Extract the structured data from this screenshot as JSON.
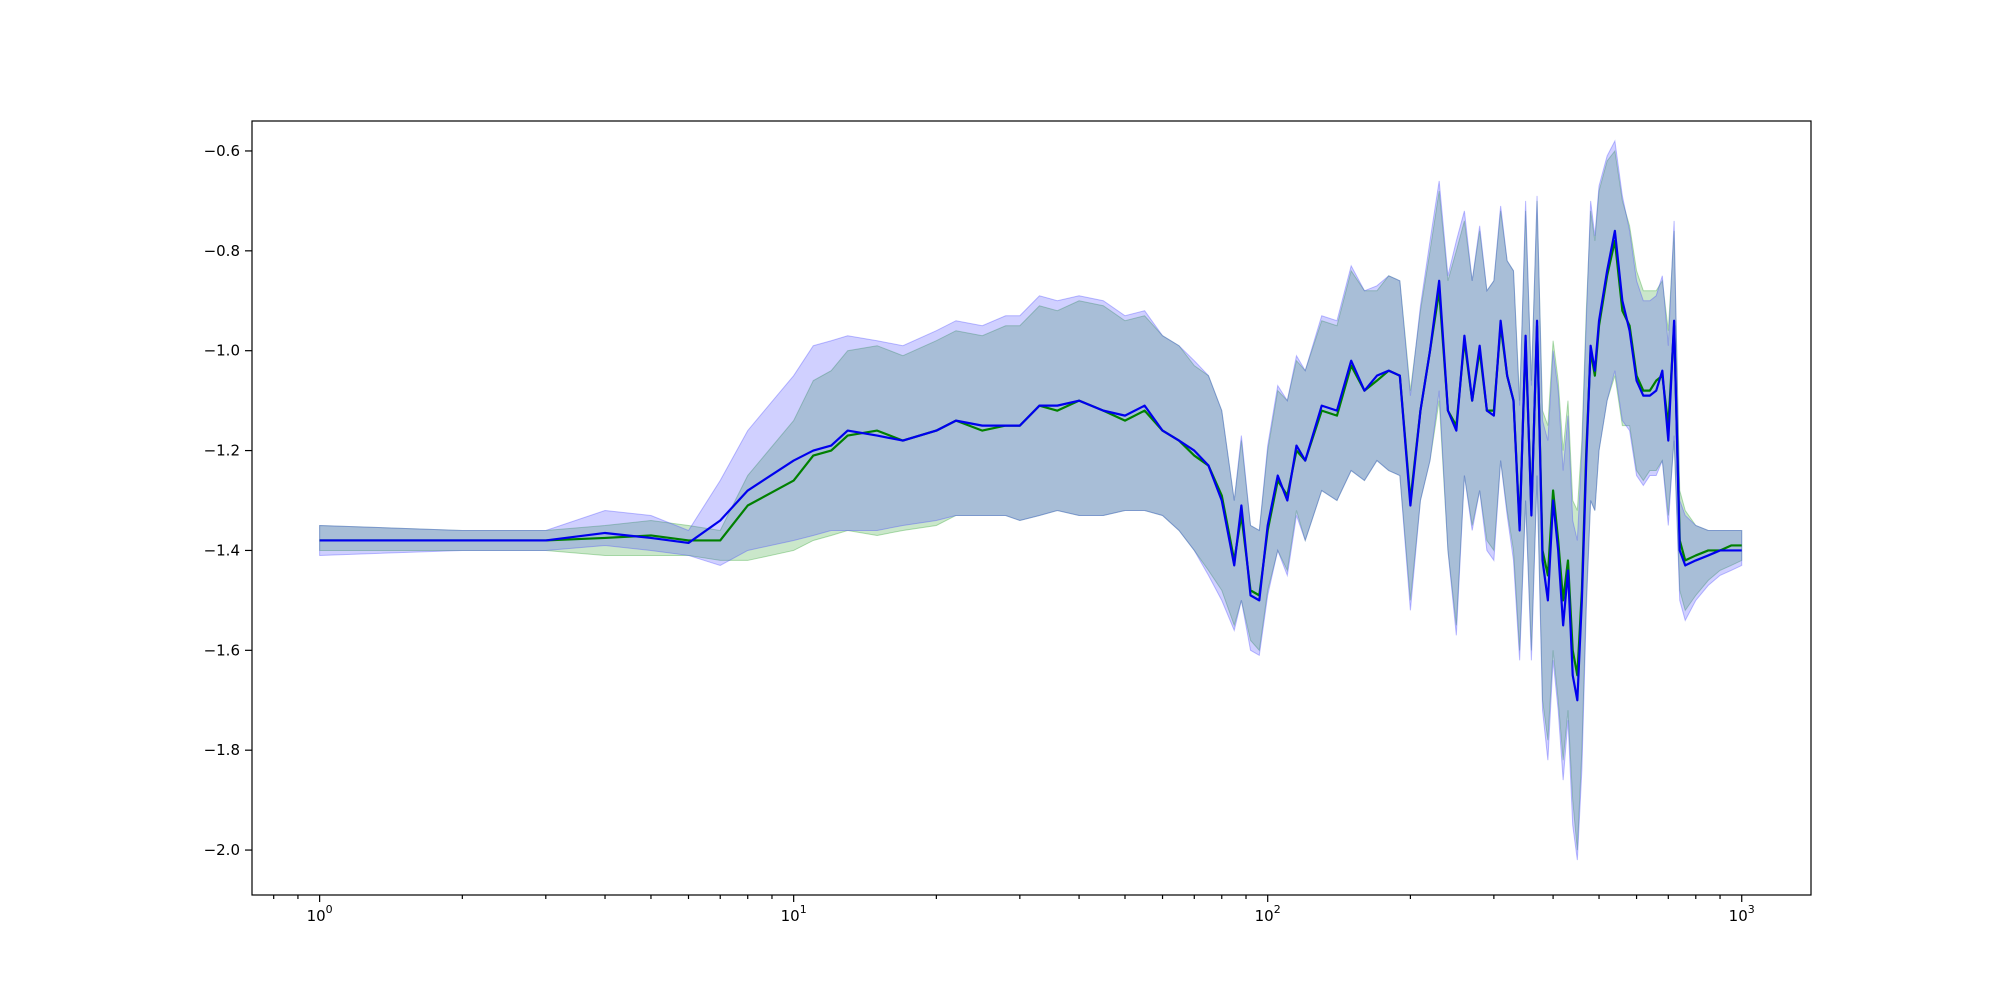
{
  "chart_data": {
    "type": "line",
    "title": "",
    "xlabel": "",
    "ylabel": "",
    "xscale": "log",
    "xlim": [
      0.72,
      1400
    ],
    "ylim": [
      -2.09,
      -0.54
    ],
    "grid": false,
    "legend": "none",
    "x_ticks": [
      {
        "value": 1,
        "base": "10",
        "exp": "0"
      },
      {
        "value": 10,
        "base": "10",
        "exp": "1"
      },
      {
        "value": 100,
        "base": "10",
        "exp": "2"
      },
      {
        "value": 1000,
        "base": "10",
        "exp": "3"
      }
    ],
    "y_ticks": [
      {
        "value": -0.6,
        "label": "−0.6"
      },
      {
        "value": -0.8,
        "label": "−0.8"
      },
      {
        "value": -1.0,
        "label": "−1.0"
      },
      {
        "value": -1.2,
        "label": "−1.2"
      },
      {
        "value": -1.4,
        "label": "−1.4"
      },
      {
        "value": -1.6,
        "label": "−1.6"
      },
      {
        "value": -1.8,
        "label": "−1.8"
      },
      {
        "value": -2.0,
        "label": "−2.0"
      }
    ],
    "series": [
      {
        "color": "#008000",
        "band_color": "#2ca02c",
        "band_opacity": 0.25,
        "x": [
          1,
          2,
          3,
          4,
          5,
          6,
          7,
          8,
          10,
          11,
          12,
          13,
          15,
          17,
          20,
          22,
          25,
          28,
          30,
          33,
          36,
          40,
          45,
          50,
          55,
          60,
          65,
          70,
          75,
          80,
          85,
          88,
          92,
          96,
          100,
          105,
          110,
          115,
          120,
          130,
          140,
          150,
          160,
          170,
          180,
          190,
          200,
          210,
          220,
          230,
          240,
          250,
          260,
          270,
          280,
          290,
          300,
          310,
          320,
          330,
          340,
          350,
          360,
          370,
          380,
          390,
          400,
          410,
          420,
          430,
          440,
          450,
          460,
          470,
          480,
          490,
          500,
          520,
          540,
          560,
          580,
          600,
          620,
          640,
          660,
          680,
          700,
          720,
          740,
          760,
          800,
          850,
          900,
          950,
          1000
        ],
        "y": [
          -1.38,
          -1.38,
          -1.38,
          -1.375,
          -1.37,
          -1.38,
          -1.38,
          -1.31,
          -1.26,
          -1.21,
          -1.2,
          -1.17,
          -1.16,
          -1.18,
          -1.16,
          -1.14,
          -1.16,
          -1.15,
          -1.15,
          -1.11,
          -1.12,
          -1.1,
          -1.12,
          -1.14,
          -1.12,
          -1.16,
          -1.18,
          -1.21,
          -1.23,
          -1.29,
          -1.42,
          -1.33,
          -1.48,
          -1.49,
          -1.36,
          -1.26,
          -1.29,
          -1.2,
          -1.22,
          -1.12,
          -1.13,
          -1.03,
          -1.08,
          -1.06,
          -1.04,
          -1.05,
          -1.3,
          -1.12,
          -1.0,
          -0.88,
          -1.12,
          -1.15,
          -0.98,
          -1.1,
          -1.0,
          -1.12,
          -1.12,
          -0.95,
          -1.05,
          -1.1,
          -1.35,
          -0.98,
          -1.32,
          -0.95,
          -1.4,
          -1.45,
          -1.28,
          -1.38,
          -1.5,
          -1.42,
          -1.6,
          -1.65,
          -1.48,
          -1.2,
          -1.0,
          -1.05,
          -0.95,
          -0.85,
          -0.78,
          -0.92,
          -0.95,
          -1.05,
          -1.08,
          -1.08,
          -1.06,
          -1.05,
          -1.15,
          -0.95,
          -1.38,
          -1.42,
          -1.41,
          -1.4,
          -1.4,
          -1.39,
          -1.39
        ],
        "lower": [
          -1.4,
          -1.4,
          -1.4,
          -1.41,
          -1.41,
          -1.41,
          -1.42,
          -1.42,
          -1.4,
          -1.38,
          -1.37,
          -1.36,
          -1.37,
          -1.36,
          -1.35,
          -1.33,
          -1.33,
          -1.33,
          -1.34,
          -1.33,
          -1.32,
          -1.33,
          -1.33,
          -1.32,
          -1.32,
          -1.33,
          -1.36,
          -1.4,
          -1.44,
          -1.48,
          -1.55,
          -1.5,
          -1.58,
          -1.6,
          -1.48,
          -1.4,
          -1.44,
          -1.32,
          -1.38,
          -1.28,
          -1.3,
          -1.24,
          -1.26,
          -1.22,
          -1.24,
          -1.25,
          -1.5,
          -1.3,
          -1.22,
          -1.1,
          -1.4,
          -1.55,
          -1.25,
          -1.35,
          -1.28,
          -1.38,
          -1.4,
          -1.22,
          -1.32,
          -1.4,
          -1.6,
          -1.3,
          -1.6,
          -1.25,
          -1.7,
          -1.78,
          -1.6,
          -1.7,
          -1.82,
          -1.72,
          -1.9,
          -2.0,
          -1.8,
          -1.5,
          -1.3,
          -1.32,
          -1.2,
          -1.1,
          -1.05,
          -1.15,
          -1.15,
          -1.24,
          -1.26,
          -1.24,
          -1.24,
          -1.22,
          -1.33,
          -1.18,
          -1.48,
          -1.52,
          -1.49,
          -1.46,
          -1.44,
          -1.43,
          -1.42
        ],
        "upper": [
          -1.35,
          -1.36,
          -1.36,
          -1.35,
          -1.34,
          -1.35,
          -1.36,
          -1.25,
          -1.14,
          -1.06,
          -1.04,
          -1.0,
          -0.99,
          -1.01,
          -0.98,
          -0.96,
          -0.97,
          -0.95,
          -0.95,
          -0.91,
          -0.92,
          -0.9,
          -0.91,
          -0.94,
          -0.93,
          -0.97,
          -0.99,
          -1.03,
          -1.05,
          -1.12,
          -1.3,
          -1.18,
          -1.35,
          -1.36,
          -1.2,
          -1.08,
          -1.1,
          -1.02,
          -1.04,
          -0.94,
          -0.95,
          -0.84,
          -0.88,
          -0.88,
          -0.85,
          -0.86,
          -1.08,
          -0.92,
          -0.8,
          -0.68,
          -0.86,
          -0.8,
          -0.74,
          -0.86,
          -0.76,
          -0.88,
          -0.86,
          -0.72,
          -0.82,
          -0.84,
          -1.1,
          -0.72,
          -1.06,
          -0.7,
          -1.12,
          -1.15,
          -0.98,
          -1.06,
          -1.2,
          -1.1,
          -1.3,
          -1.32,
          -1.18,
          -0.92,
          -0.72,
          -0.78,
          -0.68,
          -0.62,
          -0.6,
          -0.7,
          -0.75,
          -0.84,
          -0.88,
          -0.88,
          -0.88,
          -0.86,
          -0.96,
          -0.76,
          -1.28,
          -1.32,
          -1.35,
          -1.36,
          -1.36,
          -1.36,
          -1.36
        ]
      },
      {
        "color": "#0000ee",
        "band_color": "#4444ff",
        "band_opacity": 0.25,
        "x": [
          1,
          2,
          3,
          4,
          5,
          6,
          7,
          8,
          10,
          11,
          12,
          13,
          15,
          17,
          20,
          22,
          25,
          28,
          30,
          33,
          36,
          40,
          45,
          50,
          55,
          60,
          65,
          70,
          75,
          80,
          85,
          88,
          92,
          96,
          100,
          105,
          110,
          115,
          120,
          130,
          140,
          150,
          160,
          170,
          180,
          190,
          200,
          210,
          220,
          230,
          240,
          250,
          260,
          270,
          280,
          290,
          300,
          310,
          320,
          330,
          340,
          350,
          360,
          370,
          380,
          390,
          400,
          410,
          420,
          430,
          440,
          450,
          460,
          470,
          480,
          490,
          500,
          520,
          540,
          560,
          580,
          600,
          620,
          640,
          660,
          680,
          700,
          720,
          740,
          760,
          800,
          850,
          900,
          950,
          1000
        ],
        "y": [
          -1.38,
          -1.38,
          -1.38,
          -1.365,
          -1.375,
          -1.385,
          -1.34,
          -1.28,
          -1.22,
          -1.2,
          -1.19,
          -1.16,
          -1.17,
          -1.18,
          -1.16,
          -1.14,
          -1.15,
          -1.15,
          -1.15,
          -1.11,
          -1.11,
          -1.1,
          -1.12,
          -1.13,
          -1.11,
          -1.16,
          -1.18,
          -1.2,
          -1.23,
          -1.3,
          -1.43,
          -1.31,
          -1.49,
          -1.5,
          -1.35,
          -1.25,
          -1.3,
          -1.19,
          -1.22,
          -1.11,
          -1.12,
          -1.02,
          -1.08,
          -1.05,
          -1.04,
          -1.05,
          -1.31,
          -1.12,
          -1.0,
          -0.86,
          -1.12,
          -1.16,
          -0.97,
          -1.1,
          -0.99,
          -1.12,
          -1.13,
          -0.94,
          -1.05,
          -1.1,
          -1.36,
          -0.97,
          -1.33,
          -0.94,
          -1.42,
          -1.5,
          -1.3,
          -1.4,
          -1.55,
          -1.44,
          -1.65,
          -1.7,
          -1.5,
          -1.22,
          -0.99,
          -1.04,
          -0.94,
          -0.84,
          -0.76,
          -0.9,
          -0.96,
          -1.06,
          -1.09,
          -1.09,
          -1.08,
          -1.04,
          -1.18,
          -0.94,
          -1.4,
          -1.43,
          -1.42,
          -1.41,
          -1.4,
          -1.4,
          -1.4
        ],
        "lower": [
          -1.41,
          -1.4,
          -1.4,
          -1.39,
          -1.4,
          -1.41,
          -1.43,
          -1.4,
          -1.38,
          -1.37,
          -1.36,
          -1.36,
          -1.36,
          -1.35,
          -1.34,
          -1.33,
          -1.33,
          -1.33,
          -1.34,
          -1.33,
          -1.32,
          -1.33,
          -1.33,
          -1.32,
          -1.32,
          -1.33,
          -1.36,
          -1.4,
          -1.45,
          -1.5,
          -1.56,
          -1.5,
          -1.6,
          -1.61,
          -1.49,
          -1.4,
          -1.45,
          -1.33,
          -1.38,
          -1.28,
          -1.3,
          -1.24,
          -1.26,
          -1.22,
          -1.24,
          -1.25,
          -1.52,
          -1.3,
          -1.22,
          -1.08,
          -1.4,
          -1.57,
          -1.25,
          -1.36,
          -1.28,
          -1.4,
          -1.42,
          -1.22,
          -1.33,
          -1.42,
          -1.62,
          -1.3,
          -1.62,
          -1.25,
          -1.72,
          -1.82,
          -1.62,
          -1.72,
          -1.86,
          -1.74,
          -1.95,
          -2.02,
          -1.84,
          -1.52,
          -1.3,
          -1.32,
          -1.2,
          -1.1,
          -1.04,
          -1.14,
          -1.16,
          -1.25,
          -1.27,
          -1.25,
          -1.25,
          -1.22,
          -1.35,
          -1.17,
          -1.5,
          -1.54,
          -1.5,
          -1.47,
          -1.45,
          -1.44,
          -1.43
        ],
        "upper": [
          -1.35,
          -1.36,
          -1.36,
          -1.32,
          -1.33,
          -1.36,
          -1.26,
          -1.16,
          -1.05,
          -0.99,
          -0.98,
          -0.97,
          -0.98,
          -0.99,
          -0.96,
          -0.94,
          -0.95,
          -0.93,
          -0.93,
          -0.89,
          -0.9,
          -0.89,
          -0.9,
          -0.93,
          -0.92,
          -0.97,
          -0.99,
          -1.02,
          -1.05,
          -1.12,
          -1.3,
          -1.17,
          -1.35,
          -1.36,
          -1.19,
          -1.07,
          -1.1,
          -1.01,
          -1.04,
          -0.93,
          -0.94,
          -0.83,
          -0.88,
          -0.87,
          -0.85,
          -0.86,
          -1.09,
          -0.91,
          -0.78,
          -0.66,
          -0.85,
          -0.78,
          -0.72,
          -0.86,
          -0.75,
          -0.88,
          -0.86,
          -0.71,
          -0.82,
          -0.84,
          -1.11,
          -0.7,
          -1.07,
          -0.69,
          -1.14,
          -1.18,
          -1.0,
          -1.08,
          -1.24,
          -1.13,
          -1.34,
          -1.38,
          -1.2,
          -0.94,
          -0.7,
          -0.77,
          -0.67,
          -0.61,
          -0.58,
          -0.69,
          -0.76,
          -0.86,
          -0.9,
          -0.9,
          -0.89,
          -0.85,
          -0.99,
          -0.74,
          -1.3,
          -1.33,
          -1.35,
          -1.36,
          -1.36,
          -1.36,
          -1.36
        ]
      }
    ]
  }
}
